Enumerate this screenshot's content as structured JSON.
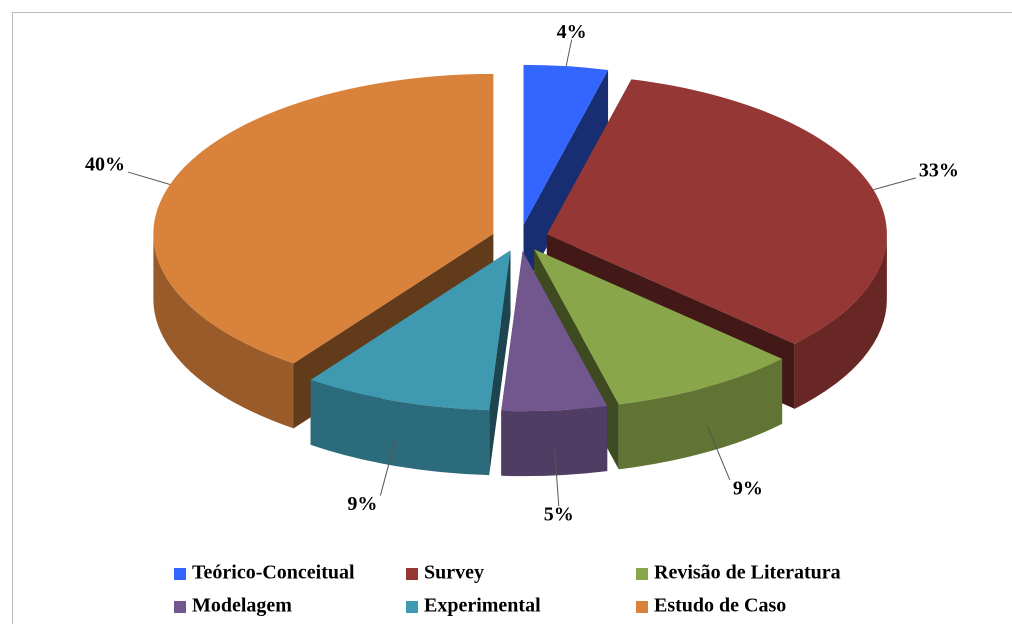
{
  "chart_data": {
    "type": "pie",
    "categories": [
      "Teórico-Conceitual",
      "Survey",
      "Revisão de Literatura",
      "Modelagem",
      "Experimental",
      "Estudo de Caso"
    ],
    "values": [
      4,
      33,
      9,
      5,
      9,
      40
    ],
    "value_labels": [
      "4%",
      "33%",
      "9%",
      "5%",
      "9%",
      "40%"
    ],
    "colors": [
      "#3366ff",
      "#953735",
      "#8aa64a",
      "#72578f",
      "#3f99b0",
      "#d9823b"
    ],
    "legend": "bottom"
  }
}
